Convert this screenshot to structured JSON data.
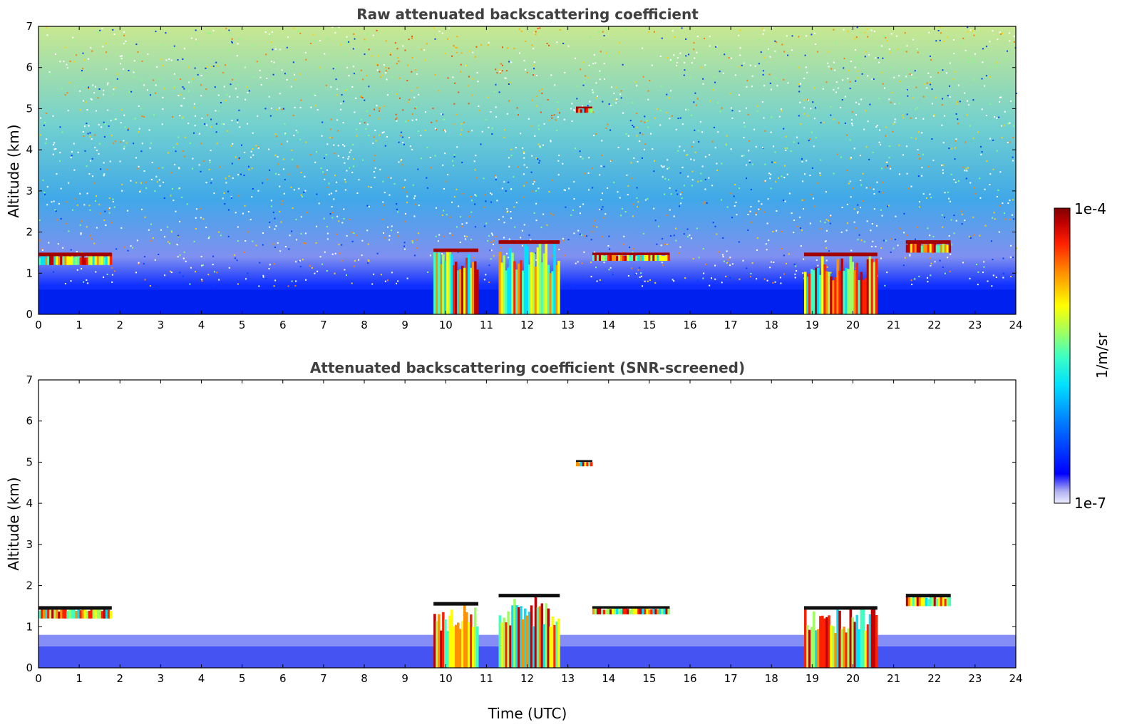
{
  "chart_data": [
    {
      "type": "heatmap",
      "title": "Raw attenuated backscattering coefficient",
      "xlabel": "",
      "ylabel": "Altitude (km)",
      "xlim": [
        0,
        24
      ],
      "ylim": [
        0,
        7
      ],
      "xticks": [
        "0",
        "1",
        "2",
        "3",
        "4",
        "5",
        "6",
        "7",
        "8",
        "9",
        "10",
        "11",
        "12",
        "13",
        "14",
        "15",
        "16",
        "17",
        "18",
        "19",
        "20",
        "21",
        "22",
        "23",
        "24"
      ],
      "yticks": [
        "0",
        "1",
        "2",
        "3",
        "4",
        "5",
        "6",
        "7"
      ],
      "grid": false,
      "features": [
        {
          "kind": "boundary-layer",
          "x": [
            0,
            24
          ],
          "y": [
            0,
            0.6
          ]
        },
        {
          "kind": "cloud",
          "x": [
            0,
            1.8
          ],
          "y": [
            1.2,
            1.5
          ]
        },
        {
          "kind": "cloud",
          "x": [
            9.7,
            10.8
          ],
          "y": [
            0,
            1.6
          ]
        },
        {
          "kind": "cloud",
          "x": [
            11.3,
            12.8
          ],
          "y": [
            0,
            1.8
          ]
        },
        {
          "kind": "cloud",
          "x": [
            13.2,
            13.6
          ],
          "y": [
            4.9,
            5.05
          ]
        },
        {
          "kind": "cloud",
          "x": [
            13.6,
            15.5
          ],
          "y": [
            1.3,
            1.5
          ]
        },
        {
          "kind": "cloud",
          "x": [
            18.8,
            20.6
          ],
          "y": [
            0,
            1.5
          ]
        },
        {
          "kind": "cloud",
          "x": [
            21.3,
            22.4
          ],
          "y": [
            1.5,
            1.8
          ]
        }
      ]
    },
    {
      "type": "heatmap",
      "title": "Attenuated backscattering coefficient (SNR-screened)",
      "xlabel": "Time (UTC)",
      "ylabel": "Altitude (km)",
      "xlim": [
        0,
        24
      ],
      "ylim": [
        0,
        7
      ],
      "xticks": [
        "0",
        "1",
        "2",
        "3",
        "4",
        "5",
        "6",
        "7",
        "8",
        "9",
        "10",
        "11",
        "12",
        "13",
        "14",
        "15",
        "16",
        "17",
        "18",
        "19",
        "20",
        "21",
        "22",
        "23",
        "24"
      ],
      "yticks": [
        "0",
        "1",
        "2",
        "3",
        "4",
        "5",
        "6",
        "7"
      ],
      "grid": false,
      "features": [
        {
          "kind": "boundary-layer",
          "x": [
            0,
            24
          ],
          "y": [
            0,
            0.8
          ]
        },
        {
          "kind": "cloud",
          "x": [
            0,
            1.8
          ],
          "y": [
            1.2,
            1.5
          ]
        },
        {
          "kind": "cloud",
          "x": [
            9.7,
            10.8
          ],
          "y": [
            0,
            1.6
          ]
        },
        {
          "kind": "cloud",
          "x": [
            11.3,
            12.8
          ],
          "y": [
            0,
            1.8
          ]
        },
        {
          "kind": "cloud",
          "x": [
            13.2,
            13.6
          ],
          "y": [
            4.9,
            5.05
          ]
        },
        {
          "kind": "cloud",
          "x": [
            13.6,
            15.5
          ],
          "y": [
            1.3,
            1.5
          ]
        },
        {
          "kind": "cloud",
          "x": [
            18.8,
            20.6
          ],
          "y": [
            0,
            1.5
          ]
        },
        {
          "kind": "cloud",
          "x": [
            21.3,
            22.4
          ],
          "y": [
            1.5,
            1.8
          ]
        }
      ]
    }
  ],
  "colorbar": {
    "label": "1/m/sr",
    "max_label": "1e-4",
    "min_label": "1e-7",
    "colors": [
      "#eeeeff",
      "#b0b0f0",
      "#0000ff",
      "#0080ff",
      "#00e0ff",
      "#40ffc0",
      "#a0ff60",
      "#ffff00",
      "#ff9000",
      "#ff2000",
      "#c00000",
      "#800000"
    ]
  }
}
